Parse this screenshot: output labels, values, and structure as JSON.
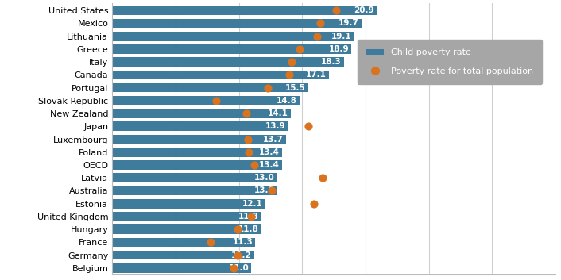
{
  "chart_data": {
    "type": "bar",
    "orientation": "horizontal",
    "categories": [
      "United States",
      "Mexico",
      "Lithuania",
      "Greece",
      "Italy",
      "Canada",
      "Portugal",
      "Slovak Republic",
      "New Zealand",
      "Japan",
      "Luxembourg",
      "Poland",
      "OECD",
      "Latvia",
      "Australia",
      "Estonia",
      "United Kingdom",
      "Hungary",
      "France",
      "Germany",
      "Belgium"
    ],
    "series": [
      {
        "name": "Child poverty rate",
        "type": "bar",
        "color": "#3f7b9b",
        "values": [
          20.9,
          19.7,
          19.1,
          18.9,
          18.3,
          17.1,
          15.5,
          14.8,
          14.1,
          13.9,
          13.7,
          13.4,
          13.4,
          13.0,
          13.0,
          12.1,
          11.8,
          11.8,
          11.3,
          11.2,
          11.0
        ]
      },
      {
        "name": "Poverty rate for total population",
        "type": "scatter",
        "color": "#d9731f",
        "marker": "o",
        "values": [
          17.7,
          16.4,
          16.2,
          14.8,
          14.2,
          14.0,
          12.3,
          8.2,
          10.6,
          15.5,
          10.7,
          10.8,
          11.2,
          16.6,
          12.6,
          15.9,
          11.0,
          9.9,
          7.8,
          9.9,
          9.6
        ]
      }
    ],
    "xlim": [
      0,
      35
    ],
    "xticks": [
      0,
      5,
      10,
      15,
      20,
      25,
      30,
      35
    ],
    "grid": true,
    "data_labels": true,
    "tick_labels": "y",
    "legend": "upper right"
  }
}
